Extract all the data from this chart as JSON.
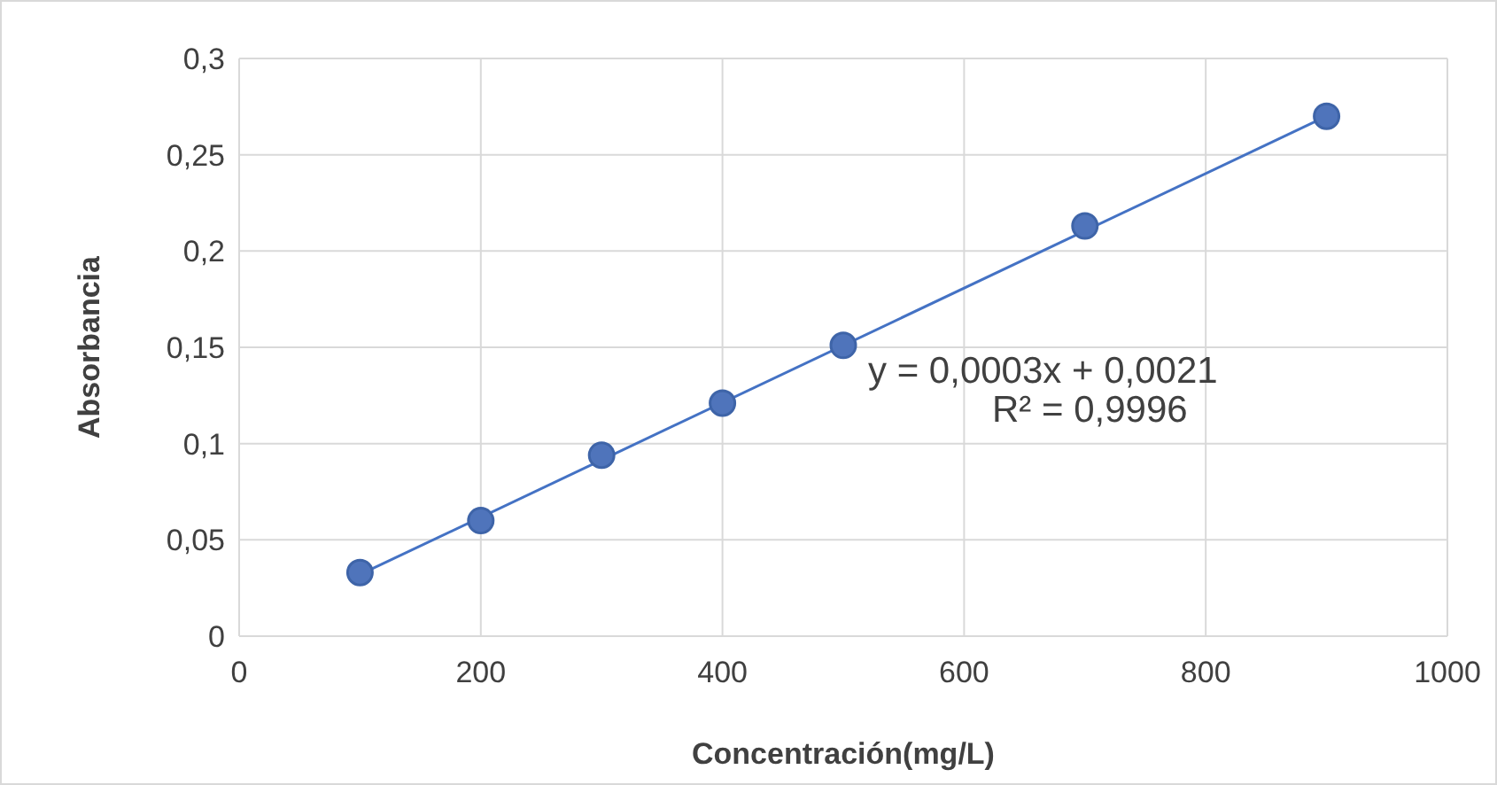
{
  "chart_data": {
    "type": "scatter",
    "xlabel": "Concentración(mg/L)",
    "ylabel": "Absorbancia",
    "series": [
      {
        "color": "#4f74bb",
        "x": [
          100,
          200,
          300,
          400,
          500,
          700,
          900
        ],
        "values": [
          0.033,
          0.06,
          0.094,
          0.121,
          0.151,
          0.213,
          0.27
        ],
        "marker": "circle"
      },
      {
        "type": "line",
        "color": "#4472c4",
        "x": [
          100,
          900
        ],
        "values": [
          0.032,
          0.27
        ],
        "marker": "none",
        "line_style": "solid"
      }
    ],
    "annotations": [
      "y = 0,0003x + 0,0021",
      "R² = 0,9996"
    ],
    "xlim": [
      0,
      1000
    ],
    "xticks": [
      0,
      200,
      400,
      600,
      800,
      1000
    ],
    "ylim": [
      0,
      0.3
    ],
    "yticks": [
      {
        "value": 0,
        "label": "0"
      },
      {
        "value": 0.05,
        "label": "0,05"
      },
      {
        "value": 0.1,
        "label": "0,1"
      },
      {
        "value": 0.15,
        "label": "0,15"
      },
      {
        "value": 0.2,
        "label": "0,2"
      },
      {
        "value": 0.25,
        "label": "0,25"
      },
      {
        "value": 0.3,
        "label": "0,3"
      }
    ],
    "grid": true,
    "legend": false
  }
}
